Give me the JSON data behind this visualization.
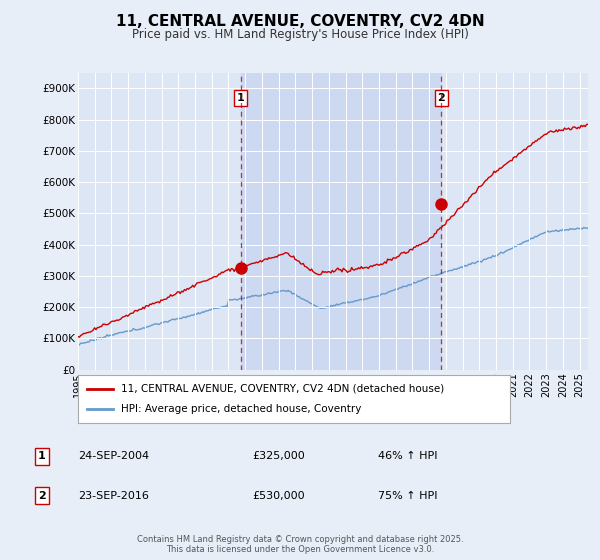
{
  "title": "11, CENTRAL AVENUE, COVENTRY, CV2 4DN",
  "subtitle": "Price paid vs. HM Land Registry's House Price Index (HPI)",
  "background_color": "#e8eef8",
  "plot_bg_color": "#dce6f5",
  "shaded_region_color": "#ccd9f0",
  "red_color": "#cc0000",
  "blue_color": "#6699cc",
  "dashed_color": "#cc0000",
  "ylim": [
    0,
    950000
  ],
  "yticks": [
    0,
    100000,
    200000,
    300000,
    400000,
    500000,
    600000,
    700000,
    800000,
    900000
  ],
  "ytick_labels": [
    "£0",
    "£100K",
    "£200K",
    "£300K",
    "£400K",
    "£500K",
    "£600K",
    "£700K",
    "£800K",
    "£900K"
  ],
  "sale1_date": 2004.73,
  "sale1_price": 325000,
  "sale2_date": 2016.73,
  "sale2_price": 530000,
  "legend_red": "11, CENTRAL AVENUE, COVENTRY, CV2 4DN (detached house)",
  "legend_blue": "HPI: Average price, detached house, Coventry",
  "table_rows": [
    [
      "1",
      "24-SEP-2004",
      "£325,000",
      "46% ↑ HPI"
    ],
    [
      "2",
      "23-SEP-2016",
      "£530,000",
      "75% ↑ HPI"
    ]
  ],
  "footer": "Contains HM Land Registry data © Crown copyright and database right 2025.\nThis data is licensed under the Open Government Licence v3.0.",
  "xmin": 1995,
  "xmax": 2025.5
}
